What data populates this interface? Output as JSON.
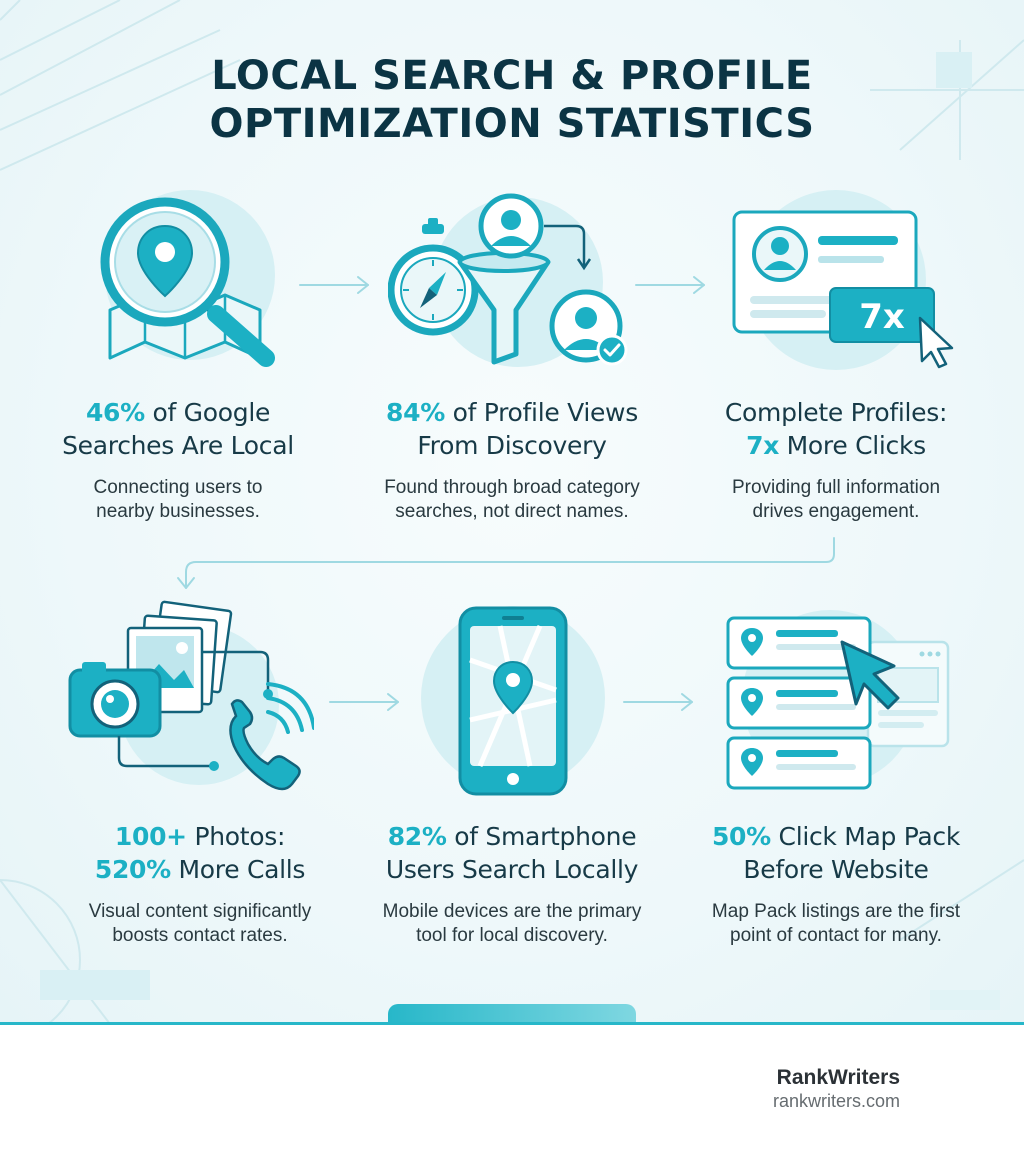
{
  "header": {
    "title_line1": "LOCAL SEARCH & PROFILE",
    "title_line2": "OPTIMIZATION STATISTICS"
  },
  "stats": [
    {
      "highlight": "46%",
      "rest1": " of Google",
      "line2": "Searches Are Local",
      "desc1": "Connecting users to",
      "desc2": "nearby businesses.",
      "icon": "magnifier-map-pin-icon"
    },
    {
      "highlight": "84%",
      "rest1": " of Profile Views",
      "line2": "From Discovery",
      "desc1": "Found through broad category",
      "desc2": "searches, not direct names.",
      "icon": "compass-funnel-users-icon"
    },
    {
      "line1": "Complete Profiles:",
      "highlight2": "7x",
      "rest2": " More Clicks",
      "desc1": "Providing full information",
      "desc2": "drives engagement.",
      "badge": "7x",
      "icon": "profile-card-cursor-icon"
    },
    {
      "highlight": "100+",
      "rest1": " Photos:",
      "highlight2": "520%",
      "rest2": " More Calls",
      "desc1": "Visual content significantly",
      "desc2": "boosts contact rates.",
      "icon": "camera-photos-phone-icon"
    },
    {
      "highlight": "82%",
      "rest1": " of Smartphone",
      "line2": "Users Search Locally",
      "desc1": "Mobile devices are the primary",
      "desc2": "tool for local discovery.",
      "icon": "smartphone-map-icon"
    },
    {
      "highlight": "50%",
      "rest1": " Click Map Pack",
      "line2": "Before Website",
      "desc1": "Map Pack listings are the first",
      "desc2": "point of contact for many.",
      "icon": "map-pack-listings-cursor-icon"
    }
  ],
  "footer": {
    "brand": "RankWriters",
    "url": "rankwriters.com"
  },
  "colors": {
    "accent": "#1cb0c4",
    "title": "#0b3444",
    "text": "#173a47"
  }
}
